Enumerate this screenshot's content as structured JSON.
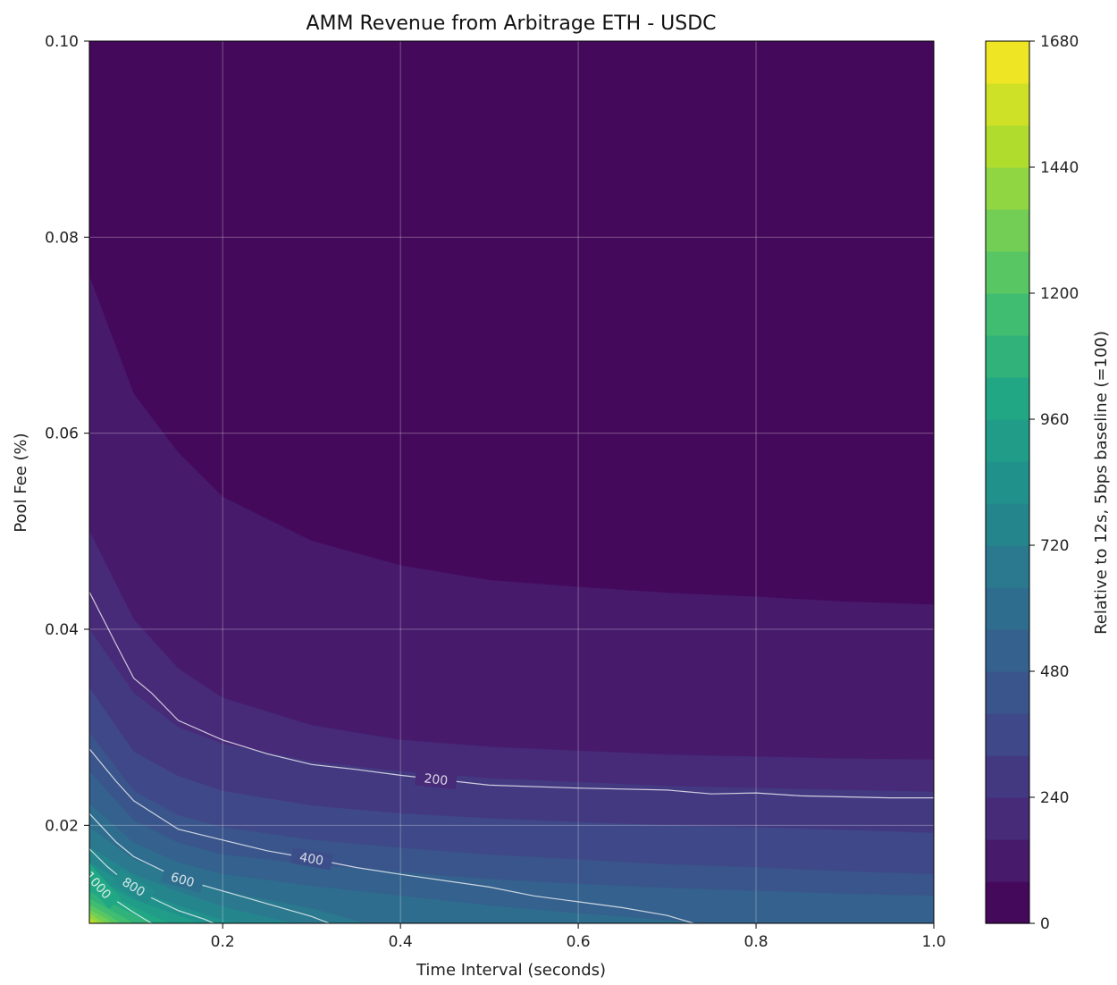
{
  "chart_data": {
    "type": "contourf",
    "title": "AMM Revenue from Arbitrage ETH - USDC",
    "xlabel": "Time Interval (seconds)",
    "ylabel": "Pool Fee (%)",
    "colorbar_label": "Relative to 12s, 5bps baseline (=100)",
    "xlim": [
      0.05,
      1.0
    ],
    "ylim": [
      0.01,
      0.1
    ],
    "xticks": [
      "0.2",
      "0.4",
      "0.6",
      "0.8",
      "1.0"
    ],
    "yticks": [
      "0.02",
      "0.04",
      "0.06",
      "0.08",
      "0.10"
    ],
    "colorbar_ticks": [
      "0",
      "240",
      "480",
      "720",
      "960",
      "1200",
      "1440",
      "1680"
    ],
    "colorbar_range": [
      0,
      1680
    ],
    "level_step": 80,
    "colormap": "viridis",
    "grid": true,
    "boundaries": [
      {
        "level": 80,
        "points": [
          [
            0.05,
            0.076
          ],
          [
            0.1,
            0.064
          ],
          [
            0.15,
            0.058
          ],
          [
            0.2,
            0.0535
          ],
          [
            0.3,
            0.049
          ],
          [
            0.4,
            0.0465
          ],
          [
            0.5,
            0.045
          ],
          [
            0.6,
            0.0443
          ],
          [
            0.7,
            0.0437
          ],
          [
            0.8,
            0.0433
          ],
          [
            0.9,
            0.0428
          ],
          [
            1.0,
            0.0425
          ]
        ]
      },
      {
        "level": 160,
        "points": [
          [
            0.05,
            0.05
          ],
          [
            0.1,
            0.041
          ],
          [
            0.15,
            0.036
          ],
          [
            0.2,
            0.033
          ],
          [
            0.3,
            0.0302
          ],
          [
            0.4,
            0.0287
          ],
          [
            0.5,
            0.028
          ],
          [
            0.6,
            0.0276
          ],
          [
            0.7,
            0.0272
          ],
          [
            0.8,
            0.027
          ],
          [
            0.9,
            0.0268
          ],
          [
            1.0,
            0.0267
          ]
        ]
      },
      {
        "level": 240,
        "points": [
          [
            0.05,
            0.04
          ],
          [
            0.1,
            0.0335
          ],
          [
            0.15,
            0.03
          ],
          [
            0.2,
            0.0283
          ],
          [
            0.3,
            0.0265
          ],
          [
            0.4,
            0.0255
          ],
          [
            0.5,
            0.0248
          ],
          [
            0.6,
            0.0244
          ],
          [
            0.7,
            0.024
          ],
          [
            0.8,
            0.0238
          ],
          [
            0.9,
            0.0236
          ],
          [
            1.0,
            0.0234
          ]
        ]
      },
      {
        "level": 320,
        "points": [
          [
            0.05,
            0.034
          ],
          [
            0.1,
            0.0275
          ],
          [
            0.15,
            0.025
          ],
          [
            0.2,
            0.0235
          ],
          [
            0.3,
            0.022
          ],
          [
            0.4,
            0.0212
          ],
          [
            0.5,
            0.0207
          ],
          [
            0.6,
            0.0203
          ],
          [
            0.7,
            0.02
          ],
          [
            0.8,
            0.0198
          ],
          [
            0.9,
            0.0195
          ],
          [
            1.0,
            0.0192
          ]
        ]
      },
      {
        "level": 400,
        "points": [
          [
            0.05,
            0.0295
          ],
          [
            0.1,
            0.0235
          ],
          [
            0.15,
            0.021
          ],
          [
            0.2,
            0.0198
          ],
          [
            0.3,
            0.0185
          ],
          [
            0.4,
            0.0177
          ],
          [
            0.5,
            0.017
          ],
          [
            0.6,
            0.0165
          ],
          [
            0.7,
            0.016
          ],
          [
            0.8,
            0.0157
          ],
          [
            0.9,
            0.0153
          ],
          [
            1.0,
            0.015
          ]
        ]
      },
      {
        "level": 480,
        "points": [
          [
            0.05,
            0.0255
          ],
          [
            0.1,
            0.0205
          ],
          [
            0.15,
            0.0182
          ],
          [
            0.2,
            0.017
          ],
          [
            0.3,
            0.016
          ],
          [
            0.4,
            0.0152
          ],
          [
            0.5,
            0.0145
          ],
          [
            0.6,
            0.014
          ],
          [
            0.7,
            0.0136
          ],
          [
            0.8,
            0.0133
          ],
          [
            0.9,
            0.013
          ],
          [
            1.0,
            0.0128
          ]
        ]
      },
      {
        "level": 560,
        "points": [
          [
            0.05,
            0.0222
          ],
          [
            0.1,
            0.0182
          ],
          [
            0.15,
            0.0162
          ],
          [
            0.2,
            0.015
          ],
          [
            0.3,
            0.0138
          ],
          [
            0.4,
            0.0128
          ],
          [
            0.5,
            0.0118
          ],
          [
            0.6,
            0.011
          ],
          [
            0.7,
            0.0103
          ],
          [
            0.75,
            0.01
          ]
        ]
      },
      {
        "level": 640,
        "points": [
          [
            0.05,
            0.0198
          ],
          [
            0.1,
            0.0165
          ],
          [
            0.15,
            0.0148
          ],
          [
            0.2,
            0.0133
          ],
          [
            0.3,
            0.0115
          ],
          [
            0.36,
            0.01
          ]
        ]
      },
      {
        "level": 720,
        "points": [
          [
            0.05,
            0.0178
          ],
          [
            0.1,
            0.015
          ],
          [
            0.15,
            0.0132
          ],
          [
            0.2,
            0.0117
          ],
          [
            0.25,
            0.0106
          ],
          [
            0.28,
            0.01
          ]
        ]
      },
      {
        "level": 800,
        "points": [
          [
            0.05,
            0.0162
          ],
          [
            0.1,
            0.0135
          ],
          [
            0.15,
            0.0118
          ],
          [
            0.2,
            0.0103
          ],
          [
            0.22,
            0.01
          ]
        ]
      },
      {
        "level": 880,
        "points": [
          [
            0.05,
            0.015
          ],
          [
            0.1,
            0.0124
          ],
          [
            0.15,
            0.0108
          ],
          [
            0.175,
            0.01
          ]
        ]
      },
      {
        "level": 960,
        "points": [
          [
            0.05,
            0.014
          ],
          [
            0.08,
            0.0125
          ],
          [
            0.12,
            0.0108
          ],
          [
            0.14,
            0.01
          ]
        ]
      },
      {
        "level": 1040,
        "points": [
          [
            0.05,
            0.0132
          ],
          [
            0.08,
            0.0118
          ],
          [
            0.1,
            0.0109
          ],
          [
            0.12,
            0.01
          ]
        ]
      },
      {
        "level": 1120,
        "points": [
          [
            0.05,
            0.0125
          ],
          [
            0.07,
            0.0115
          ],
          [
            0.1,
            0.01
          ]
        ]
      },
      {
        "level": 1200,
        "points": [
          [
            0.05,
            0.0119
          ],
          [
            0.07,
            0.0109
          ],
          [
            0.085,
            0.01
          ]
        ]
      },
      {
        "level": 1280,
        "points": [
          [
            0.05,
            0.0114
          ],
          [
            0.07,
            0.0104
          ],
          [
            0.075,
            0.01
          ]
        ]
      },
      {
        "level": 1360,
        "points": [
          [
            0.05,
            0.011
          ],
          [
            0.065,
            0.0101
          ],
          [
            0.067,
            0.01
          ]
        ]
      },
      {
        "level": 1440,
        "points": [
          [
            0.05,
            0.0106
          ],
          [
            0.06,
            0.01
          ]
        ]
      },
      {
        "level": 1520,
        "points": [
          [
            0.05,
            0.0103
          ],
          [
            0.055,
            0.01
          ]
        ]
      }
    ],
    "contour_lines": [
      {
        "level": 200,
        "label": "200",
        "label_at": 0.44,
        "points": [
          [
            0.05,
            0.0438
          ],
          [
            0.08,
            0.0385
          ],
          [
            0.1,
            0.035
          ],
          [
            0.12,
            0.0335
          ],
          [
            0.15,
            0.0307
          ],
          [
            0.2,
            0.0287
          ],
          [
            0.25,
            0.0273
          ],
          [
            0.3,
            0.0262
          ],
          [
            0.35,
            0.0257
          ],
          [
            0.4,
            0.0251
          ],
          [
            0.5,
            0.0241
          ],
          [
            0.6,
            0.0238
          ],
          [
            0.7,
            0.0236
          ],
          [
            0.75,
            0.0232
          ],
          [
            0.8,
            0.0233
          ],
          [
            0.85,
            0.023
          ],
          [
            0.95,
            0.0228
          ],
          [
            1.0,
            0.0228
          ]
        ]
      },
      {
        "level": 400,
        "label": "400",
        "label_at": 0.3,
        "points": [
          [
            0.05,
            0.0278
          ],
          [
            0.08,
            0.0245
          ],
          [
            0.1,
            0.0225
          ],
          [
            0.15,
            0.0196
          ],
          [
            0.2,
            0.0185
          ],
          [
            0.25,
            0.0174
          ],
          [
            0.3,
            0.0166
          ],
          [
            0.35,
            0.0157
          ],
          [
            0.4,
            0.015
          ],
          [
            0.5,
            0.0137
          ],
          [
            0.55,
            0.0128
          ],
          [
            0.6,
            0.0122
          ],
          [
            0.65,
            0.0116
          ],
          [
            0.7,
            0.0108
          ],
          [
            0.73,
            0.01
          ]
        ]
      },
      {
        "level": 600,
        "label": "600",
        "label_at": 0.155,
        "points": [
          [
            0.05,
            0.0212
          ],
          [
            0.08,
            0.0183
          ],
          [
            0.1,
            0.0168
          ],
          [
            0.15,
            0.0146
          ],
          [
            0.2,
            0.0133
          ],
          [
            0.25,
            0.012
          ],
          [
            0.3,
            0.0107
          ],
          [
            0.32,
            0.01
          ]
        ]
      },
      {
        "level": 800,
        "label": "800",
        "label_at": 0.1,
        "points": [
          [
            0.05,
            0.0176
          ],
          [
            0.07,
            0.0158
          ],
          [
            0.09,
            0.0143
          ],
          [
            0.12,
            0.0126
          ],
          [
            0.15,
            0.0113
          ],
          [
            0.18,
            0.0104
          ],
          [
            0.19,
            0.01
          ]
        ]
      },
      {
        "level": 1000,
        "label": "1000",
        "label_at": 0.06,
        "points": [
          [
            0.05,
            0.0149
          ],
          [
            0.06,
            0.0139
          ],
          [
            0.08,
            0.0123
          ],
          [
            0.1,
            0.0111
          ],
          [
            0.12,
            0.01
          ]
        ]
      }
    ]
  }
}
